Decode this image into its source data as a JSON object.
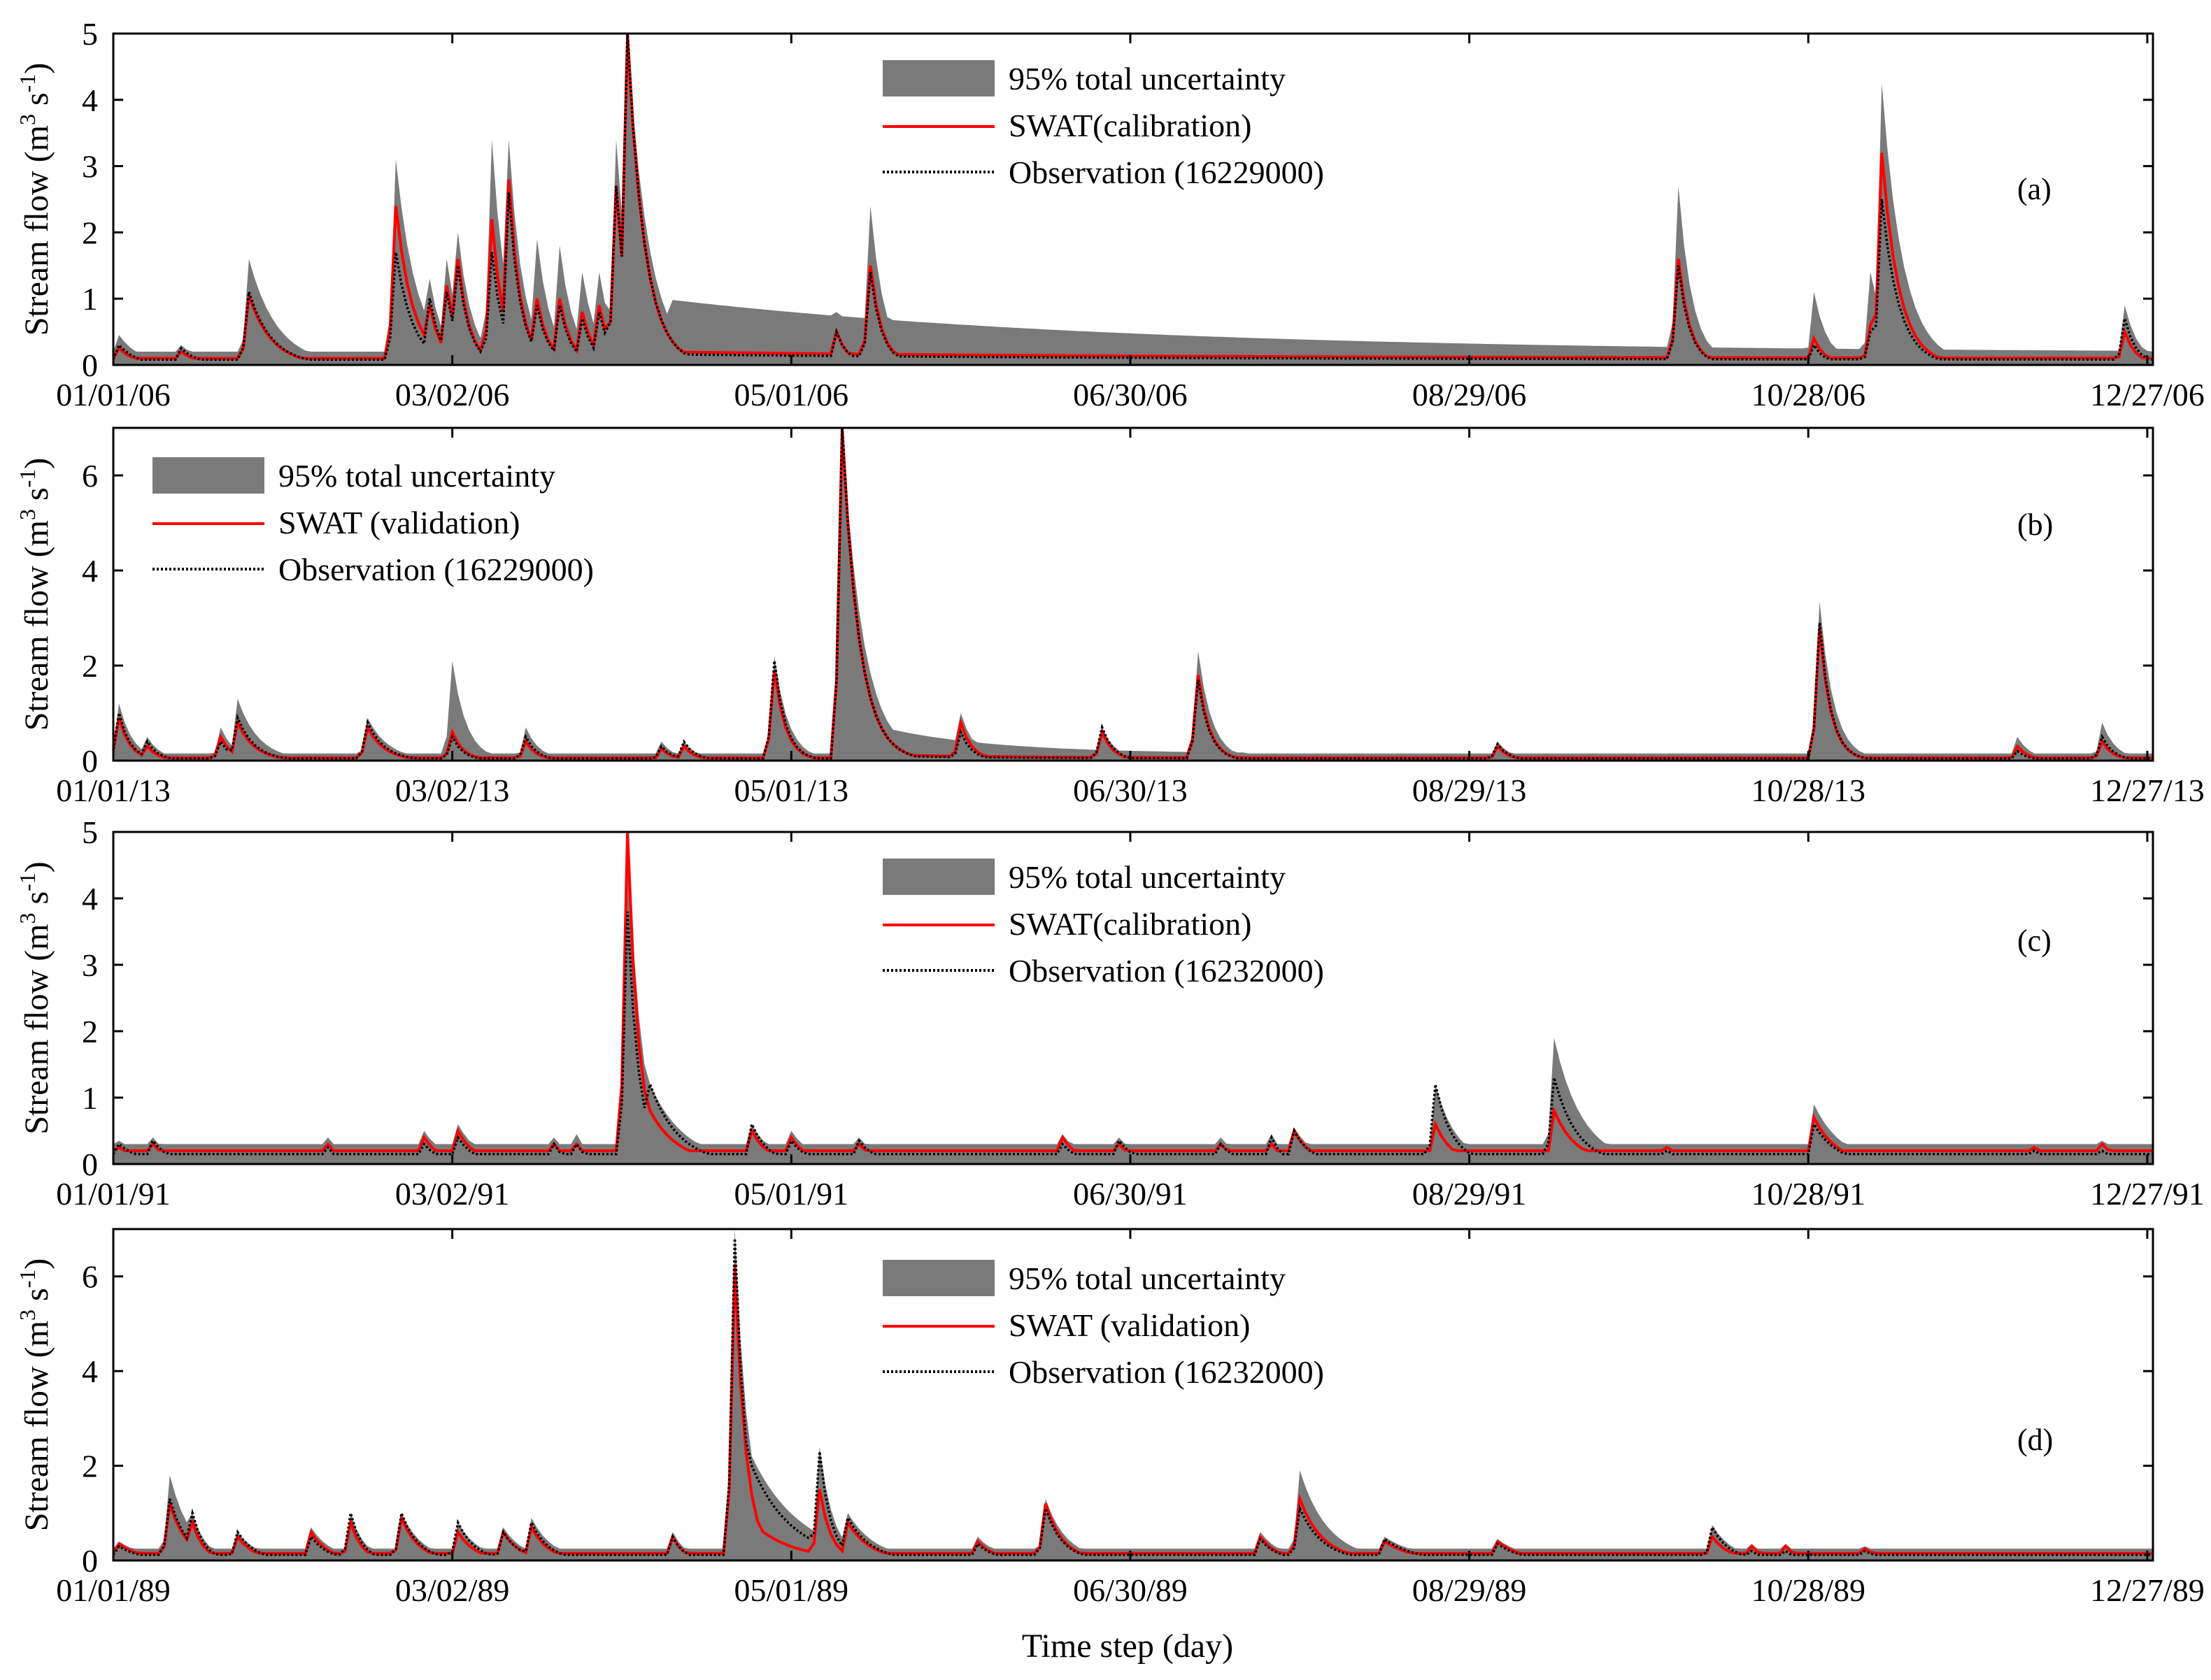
{
  "figure": {
    "xlabel": "Time step (day)",
    "ylabel": "Stream flow (m3 s-1)",
    "colors": {
      "band": "#7a7a7a",
      "swat": "#ff0000",
      "obs": "#000000",
      "axes": "#000000"
    }
  },
  "chart_data": [
    {
      "type": "area",
      "panel_label": "(a)",
      "xlim": [
        0,
        361
      ],
      "ylim": [
        0,
        5
      ],
      "yticks": [
        0,
        1,
        2,
        3,
        4,
        5
      ],
      "xtick_days": [
        0,
        60,
        120,
        180,
        240,
        300,
        360
      ],
      "xtick_labels": [
        "01/01/06",
        "03/02/06",
        "05/01/06",
        "06/30/06",
        "08/29/06",
        "10/28/06",
        "12/27/06"
      ],
      "legend_position": "top-center",
      "legend": [
        "95% total uncertainty",
        "SWAT(calibration)",
        "Observation (16229000)"
      ],
      "series": [
        {
          "name": "95% total uncertainty",
          "role": "band"
        },
        {
          "name": "SWAT(calibration)",
          "role": "line",
          "color": "#ff0000"
        },
        {
          "name": "Observation (16229000)",
          "role": "line",
          "style": "dotted",
          "color": "#000000"
        }
      ],
      "baseline": {
        "swat": 0.1,
        "obs": 0.08,
        "hi": 0.2
      },
      "recessions": [
        {
          "start": 99,
          "end": 360,
          "from": 0.8,
          "to": 0.18
        }
      ],
      "peaks": [
        {
          "day": 1,
          "swat": 0.25,
          "obs": 0.3,
          "hi": 0.45,
          "decay": 3
        },
        {
          "day": 12,
          "swat": 0.2,
          "obs": 0.25,
          "hi": 0.3,
          "decay": 3
        },
        {
          "day": 24,
          "swat": 1.05,
          "obs": 1.1,
          "hi": 1.6,
          "decay": 4
        },
        {
          "day": 50,
          "swat": 2.4,
          "obs": 1.7,
          "hi": 3.1,
          "decay": 3
        },
        {
          "day": 56,
          "swat": 0.9,
          "obs": 1.0,
          "hi": 1.3,
          "decay": 2
        },
        {
          "day": 59,
          "swat": 1.2,
          "obs": 1.1,
          "hi": 1.6,
          "decay": 2
        },
        {
          "day": 61,
          "swat": 1.6,
          "obs": 1.5,
          "hi": 2.0,
          "decay": 2
        },
        {
          "day": 67,
          "swat": 2.2,
          "obs": 1.7,
          "hi": 3.4,
          "decay": 2
        },
        {
          "day": 70,
          "swat": 2.8,
          "obs": 2.6,
          "hi": 3.4,
          "decay": 2
        },
        {
          "day": 75,
          "swat": 1.0,
          "obs": 0.9,
          "hi": 1.9,
          "decay": 2
        },
        {
          "day": 79,
          "swat": 1.0,
          "obs": 0.9,
          "hi": 1.8,
          "decay": 2
        },
        {
          "day": 83,
          "swat": 0.8,
          "obs": 0.7,
          "hi": 1.4,
          "decay": 2
        },
        {
          "day": 86,
          "swat": 0.9,
          "obs": 0.8,
          "hi": 1.4,
          "decay": 2
        },
        {
          "day": 89,
          "swat": 2.7,
          "obs": 2.7,
          "hi": 3.4,
          "decay": 2
        },
        {
          "day": 91,
          "swat": 5.0,
          "obs": 5.0,
          "hi": 5.0,
          "decay": 3
        },
        {
          "day": 128,
          "swat": 0.5,
          "obs": 0.5,
          "hi": 0.8,
          "decay": 2
        },
        {
          "day": 134,
          "swat": 1.5,
          "obs": 1.4,
          "hi": 2.4,
          "decay": 2
        },
        {
          "day": 277,
          "swat": 1.6,
          "obs": 1.5,
          "hi": 2.7,
          "decay": 2
        },
        {
          "day": 301,
          "swat": 0.4,
          "obs": 0.3,
          "hi": 1.1,
          "decay": 2
        },
        {
          "day": 311,
          "swat": 0.6,
          "obs": 0.5,
          "hi": 1.4,
          "decay": 2
        },
        {
          "day": 313,
          "swat": 3.2,
          "obs": 2.5,
          "hi": 4.25,
          "decay": 3
        },
        {
          "day": 356,
          "swat": 0.5,
          "obs": 0.7,
          "hi": 0.9,
          "decay": 2
        }
      ]
    },
    {
      "type": "area",
      "panel_label": "(b)",
      "xlim": [
        0,
        361
      ],
      "ylim": [
        0,
        7
      ],
      "yticks": [
        0,
        2,
        4,
        6
      ],
      "xtick_days": [
        0,
        60,
        120,
        180,
        240,
        300,
        360
      ],
      "xtick_labels": [
        "01/01/13",
        "03/02/13",
        "05/01/13",
        "06/30/13",
        "08/29/13",
        "10/28/13",
        "12/27/13"
      ],
      "legend_position": "top-left",
      "legend": [
        "95% total uncertainty",
        "SWAT (validation)",
        "Observation (16229000)"
      ],
      "series": [
        {
          "name": "95% total uncertainty",
          "role": "band"
        },
        {
          "name": "SWAT (validation)",
          "role": "line",
          "color": "#ff0000"
        },
        {
          "name": "Observation (16229000)",
          "role": "line",
          "style": "dotted",
          "color": "#000000"
        }
      ],
      "baseline": {
        "swat": 0.06,
        "obs": 0.05,
        "hi": 0.15
      },
      "recessions": [
        {
          "start": 138,
          "end": 200,
          "from": 0.5,
          "to": 0.15
        }
      ],
      "peaks": [
        {
          "day": 1,
          "swat": 0.9,
          "obs": 1.0,
          "hi": 1.2,
          "decay": 2
        },
        {
          "day": 6,
          "swat": 0.3,
          "obs": 0.4,
          "hi": 0.5,
          "decay": 2
        },
        {
          "day": 19,
          "swat": 0.5,
          "obs": 0.4,
          "hi": 0.7,
          "decay": 2
        },
        {
          "day": 22,
          "swat": 0.8,
          "obs": 0.9,
          "hi": 1.3,
          "decay": 3
        },
        {
          "day": 45,
          "swat": 0.7,
          "obs": 0.8,
          "hi": 0.9,
          "decay": 3
        },
        {
          "day": 60,
          "swat": 0.6,
          "obs": 0.5,
          "hi": 2.1,
          "decay": 2
        },
        {
          "day": 73,
          "swat": 0.4,
          "obs": 0.5,
          "hi": 0.7,
          "decay": 2
        },
        {
          "day": 97,
          "swat": 0.25,
          "obs": 0.3,
          "hi": 0.4,
          "decay": 2
        },
        {
          "day": 101,
          "swat": 0.3,
          "obs": 0.4,
          "hi": 0.4,
          "decay": 2
        },
        {
          "day": 117,
          "swat": 1.9,
          "obs": 2.1,
          "hi": 2.2,
          "decay": 2
        },
        {
          "day": 129,
          "swat": 7.0,
          "obs": 7.0,
          "hi": 7.0,
          "decay": 3
        },
        {
          "day": 150,
          "swat": 0.8,
          "obs": 0.6,
          "hi": 1.0,
          "decay": 2
        },
        {
          "day": 175,
          "swat": 0.6,
          "obs": 0.7,
          "hi": 0.7,
          "decay": 2
        },
        {
          "day": 192,
          "swat": 1.8,
          "obs": 1.7,
          "hi": 2.3,
          "decay": 2
        },
        {
          "day": 245,
          "swat": 0.3,
          "obs": 0.35,
          "hi": 0.4,
          "decay": 2
        },
        {
          "day": 302,
          "swat": 2.8,
          "obs": 2.9,
          "hi": 3.35,
          "decay": 2
        },
        {
          "day": 337,
          "swat": 0.3,
          "obs": 0.2,
          "hi": 0.5,
          "decay": 2
        },
        {
          "day": 352,
          "swat": 0.4,
          "obs": 0.5,
          "hi": 0.8,
          "decay": 2
        }
      ]
    },
    {
      "type": "area",
      "panel_label": "(c)",
      "xlim": [
        0,
        361
      ],
      "ylim": [
        0,
        5
      ],
      "yticks": [
        0,
        1,
        2,
        3,
        4,
        5
      ],
      "xtick_days": [
        0,
        60,
        120,
        180,
        240,
        300,
        360
      ],
      "xtick_labels": [
        "01/01/91",
        "03/02/91",
        "05/01/91",
        "06/30/91",
        "08/29/91",
        "10/28/91",
        "12/27/91"
      ],
      "legend_position": "top-center",
      "legend": [
        "95% total uncertainty",
        "SWAT(calibration)",
        "Observation (16232000)"
      ],
      "series": [
        {
          "name": "95% total uncertainty",
          "role": "band"
        },
        {
          "name": "SWAT(calibration)",
          "role": "line",
          "color": "#ff0000"
        },
        {
          "name": "Observation (16232000)",
          "role": "line",
          "style": "dotted",
          "color": "#000000"
        }
      ],
      "baseline": {
        "swat": 0.2,
        "obs": 0.15,
        "hi": 0.3
      },
      "recessions": [],
      "peaks": [
        {
          "day": 1,
          "swat": 0.25,
          "obs": 0.3,
          "hi": 0.35,
          "decay": 4
        },
        {
          "day": 7,
          "swat": 0.3,
          "obs": 0.35,
          "hi": 0.4,
          "decay": 3
        },
        {
          "day": 38,
          "swat": 0.3,
          "obs": 0.25,
          "hi": 0.4,
          "decay": 2
        },
        {
          "day": 55,
          "swat": 0.4,
          "obs": 0.3,
          "hi": 0.5,
          "decay": 3
        },
        {
          "day": 61,
          "swat": 0.5,
          "obs": 0.4,
          "hi": 0.6,
          "decay": 3
        },
        {
          "day": 78,
          "swat": 0.3,
          "obs": 0.3,
          "hi": 0.4,
          "decay": 2
        },
        {
          "day": 82,
          "swat": 0.3,
          "obs": 0.3,
          "hi": 0.45,
          "decay": 2
        },
        {
          "day": 91,
          "swat": 5.0,
          "obs": 3.8,
          "hi": 5.0,
          "decay": 2
        },
        {
          "day": 95,
          "swat": 0.8,
          "obs": 1.2,
          "hi": 1.2,
          "decay": 5
        },
        {
          "day": 113,
          "swat": 0.5,
          "obs": 0.6,
          "hi": 0.6,
          "decay": 3
        },
        {
          "day": 120,
          "swat": 0.4,
          "obs": 0.35,
          "hi": 0.5,
          "decay": 3
        },
        {
          "day": 132,
          "swat": 0.3,
          "obs": 0.35,
          "hi": 0.4,
          "decay": 3
        },
        {
          "day": 168,
          "swat": 0.4,
          "obs": 0.3,
          "hi": 0.45,
          "decay": 3
        },
        {
          "day": 178,
          "swat": 0.3,
          "obs": 0.35,
          "hi": 0.4,
          "decay": 3
        },
        {
          "day": 196,
          "swat": 0.3,
          "obs": 0.3,
          "hi": 0.4,
          "decay": 3
        },
        {
          "day": 205,
          "swat": 0.3,
          "obs": 0.4,
          "hi": 0.45,
          "decay": 2
        },
        {
          "day": 209,
          "swat": 0.5,
          "obs": 0.5,
          "hi": 0.55,
          "decay": 3
        },
        {
          "day": 234,
          "swat": 0.6,
          "obs": 1.2,
          "hi": 1.2,
          "decay": 3
        },
        {
          "day": 255,
          "swat": 0.8,
          "obs": 1.3,
          "hi": 1.9,
          "decay": 4
        },
        {
          "day": 275,
          "swat": 0.25,
          "obs": 0.2,
          "hi": 0.3,
          "decay": 2
        },
        {
          "day": 301,
          "swat": 0.7,
          "obs": 0.6,
          "hi": 0.9,
          "decay": 4
        },
        {
          "day": 340,
          "swat": 0.25,
          "obs": 0.2,
          "hi": 0.3,
          "decay": 3
        },
        {
          "day": 352,
          "swat": 0.3,
          "obs": 0.2,
          "hi": 0.35,
          "decay": 3
        }
      ]
    },
    {
      "type": "area",
      "panel_label": "(d)",
      "xlim": [
        0,
        361
      ],
      "ylim": [
        0,
        7
      ],
      "yticks": [
        0,
        2,
        4,
        6
      ],
      "xtick_days": [
        0,
        60,
        120,
        180,
        240,
        300,
        360
      ],
      "xtick_labels": [
        "01/01/89",
        "03/02/89",
        "05/01/89",
        "06/30/89",
        "08/29/89",
        "10/28/89",
        "12/27/89"
      ],
      "legend_position": "top-center",
      "legend": [
        "95% total uncertainty",
        "SWAT (validation)",
        "Observation (16232000)"
      ],
      "series": [
        {
          "name": "95% total uncertainty",
          "role": "band"
        },
        {
          "name": "SWAT (validation)",
          "role": "line",
          "color": "#ff0000"
        },
        {
          "name": "Observation (16232000)",
          "role": "line",
          "style": "dotted",
          "color": "#000000"
        }
      ],
      "baseline": {
        "swat": 0.15,
        "obs": 0.12,
        "hi": 0.25
      },
      "recessions": [],
      "peaks": [
        {
          "day": 1,
          "swat": 0.35,
          "obs": 0.3,
          "hi": 0.4,
          "decay": 4
        },
        {
          "day": 10,
          "swat": 1.2,
          "obs": 1.3,
          "hi": 1.8,
          "decay": 3
        },
        {
          "day": 14,
          "swat": 0.8,
          "obs": 1.0,
          "hi": 1.0,
          "decay": 2
        },
        {
          "day": 22,
          "swat": 0.5,
          "obs": 0.6,
          "hi": 0.6,
          "decay": 3
        },
        {
          "day": 35,
          "swat": 0.6,
          "obs": 0.5,
          "hi": 0.7,
          "decay": 3
        },
        {
          "day": 42,
          "swat": 0.8,
          "obs": 1.0,
          "hi": 1.0,
          "decay": 2
        },
        {
          "day": 51,
          "swat": 0.9,
          "obs": 1.0,
          "hi": 1.0,
          "decay": 3
        },
        {
          "day": 61,
          "swat": 0.6,
          "obs": 0.8,
          "hi": 0.8,
          "decay": 3
        },
        {
          "day": 69,
          "swat": 0.6,
          "obs": 0.6,
          "hi": 0.7,
          "decay": 3
        },
        {
          "day": 74,
          "swat": 0.7,
          "obs": 0.8,
          "hi": 0.9,
          "decay": 3
        },
        {
          "day": 99,
          "swat": 0.5,
          "obs": 0.5,
          "hi": 0.6,
          "decay": 2
        },
        {
          "day": 110,
          "swat": 6.2,
          "obs": 6.8,
          "hi": 7.0,
          "decay": 2
        },
        {
          "day": 113,
          "swat": 0.8,
          "obs": 2.0,
          "hi": 2.2,
          "decay": 7
        },
        {
          "day": 125,
          "swat": 1.5,
          "obs": 2.3,
          "hi": 2.4,
          "decay": 2
        },
        {
          "day": 130,
          "swat": 0.8,
          "obs": 0.9,
          "hi": 1.0,
          "decay": 4
        },
        {
          "day": 153,
          "swat": 0.4,
          "obs": 0.35,
          "hi": 0.5,
          "decay": 3
        },
        {
          "day": 165,
          "swat": 1.2,
          "obs": 1.1,
          "hi": 1.3,
          "decay": 3
        },
        {
          "day": 203,
          "swat": 0.5,
          "obs": 0.45,
          "hi": 0.6,
          "decay": 3
        },
        {
          "day": 210,
          "swat": 1.3,
          "obs": 1.1,
          "hi": 1.9,
          "decay": 4
        },
        {
          "day": 225,
          "swat": 0.4,
          "obs": 0.45,
          "hi": 0.5,
          "decay": 5
        },
        {
          "day": 245,
          "swat": 0.4,
          "obs": 0.35,
          "hi": 0.45,
          "decay": 4
        },
        {
          "day": 283,
          "swat": 0.5,
          "obs": 0.7,
          "hi": 0.75,
          "decay": 3
        },
        {
          "day": 290,
          "swat": 0.3,
          "obs": 0.2,
          "hi": 0.35,
          "decay": 2
        },
        {
          "day": 296,
          "swat": 0.3,
          "obs": 0.2,
          "hi": 0.35,
          "decay": 2
        },
        {
          "day": 310,
          "swat": 0.25,
          "obs": 0.2,
          "hi": 0.3,
          "decay": 3
        }
      ]
    }
  ]
}
